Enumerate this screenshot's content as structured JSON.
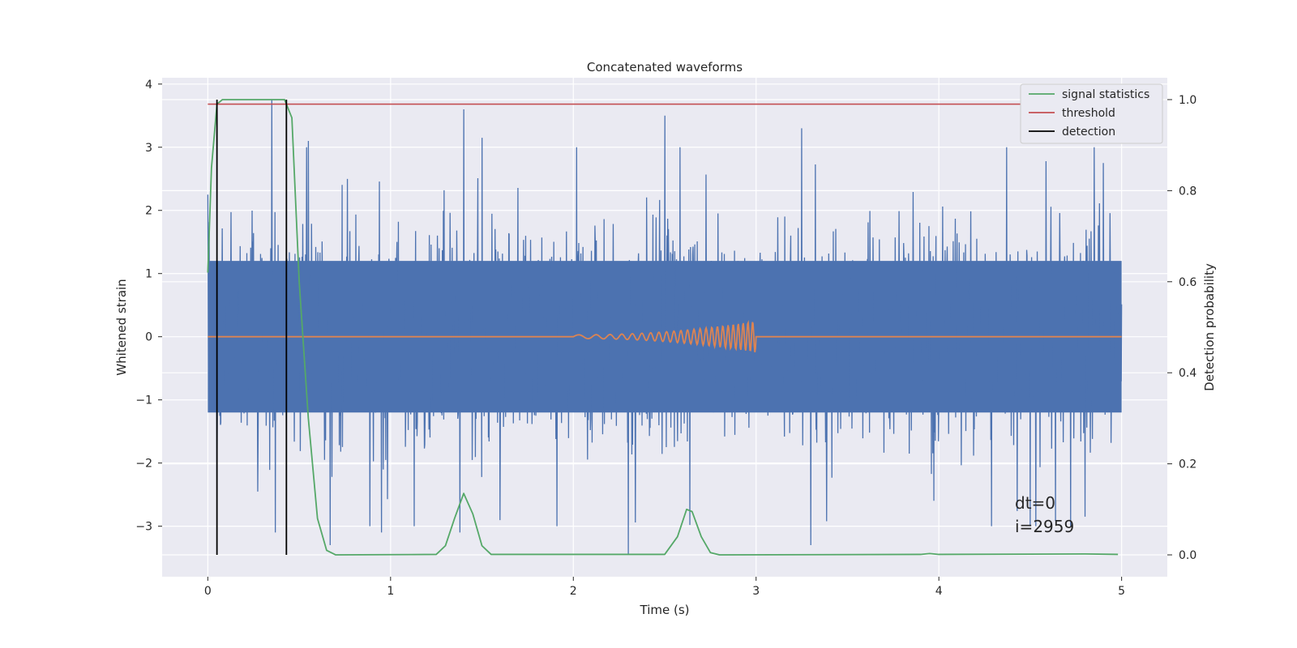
{
  "chart_data": {
    "type": "line",
    "title": "Concatenated waveforms",
    "xlabel": "Time (s)",
    "ylabel": "Whitened strain",
    "y2label": "Detection probability",
    "xlim": [
      -0.25,
      5.25
    ],
    "ylim": [
      -3.8,
      4.1
    ],
    "y2lim": [
      -0.048,
      1.048
    ],
    "x_ticks": [
      0,
      1,
      2,
      3,
      4,
      5
    ],
    "x_tick_labels": [
      "0",
      "1",
      "2",
      "3",
      "4",
      "5"
    ],
    "y_ticks": [
      -3,
      -2,
      -1,
      0,
      1,
      2,
      3,
      4
    ],
    "y_tick_labels": [
      "−3",
      "−2",
      "−1",
      "0",
      "1",
      "2",
      "3",
      "4"
    ],
    "y2_ticks": [
      0.0,
      0.2,
      0.4,
      0.6,
      0.8,
      1.0
    ],
    "y2_tick_labels": [
      "0.0",
      "0.2",
      "0.4",
      "0.6",
      "0.8",
      "1.0"
    ],
    "grid": true,
    "legend_position": "top-right",
    "colors": {
      "background": "#eaeaf2",
      "grid": "#ffffff",
      "strain": "#4c72b0",
      "template": "#dd8452",
      "signal_statistics": "#55a868",
      "threshold": "#c44e52",
      "detection": "#000000"
    },
    "series": [
      {
        "key": "strain",
        "axis": "left",
        "x_range": [
          0,
          5
        ],
        "envelope_abs": 1.2,
        "noise_std": 0.78,
        "notable_spikes": [
          {
            "x": 0.0,
            "y": 2.25
          },
          {
            "x": 0.05,
            "y": -2.4
          },
          {
            "x": 0.35,
            "y": 3.75
          },
          {
            "x": 0.37,
            "y": -3.1
          },
          {
            "x": 0.55,
            "y": 3.1
          },
          {
            "x": 0.67,
            "y": -3.3
          },
          {
            "x": 0.95,
            "y": -3.1
          },
          {
            "x": 1.4,
            "y": 3.6
          },
          {
            "x": 1.38,
            "y": -3.1
          },
          {
            "x": 1.5,
            "y": 3.15
          },
          {
            "x": 2.3,
            "y": -3.45
          },
          {
            "x": 2.5,
            "y": 3.5
          },
          {
            "x": 3.25,
            "y": 3.3
          },
          {
            "x": 3.3,
            "y": -3.3
          },
          {
            "x": 4.5,
            "y": -3.0
          },
          {
            "x": 4.8,
            "y": -2.85
          },
          {
            "x": 4.9,
            "y": 2.75
          }
        ]
      },
      {
        "key": "template",
        "axis": "left",
        "x_range": [
          0,
          5
        ],
        "chirp": {
          "start": 2.0,
          "end": 3.0,
          "start_amplitude": 0.03,
          "end_amplitude": 0.25,
          "start_freq_hz": 8,
          "end_freq_hz": 40
        }
      },
      {
        "key": "signal_statistics",
        "name": "signal statistics",
        "axis": "right",
        "points": [
          [
            0.0,
            0.62
          ],
          [
            0.02,
            0.85
          ],
          [
            0.05,
            0.99
          ],
          [
            0.08,
            1.0
          ],
          [
            0.35,
            1.0
          ],
          [
            0.42,
            1.0
          ],
          [
            0.46,
            0.96
          ],
          [
            0.5,
            0.6
          ],
          [
            0.55,
            0.3
          ],
          [
            0.6,
            0.08
          ],
          [
            0.65,
            0.01
          ],
          [
            0.7,
            0.0
          ],
          [
            1.25,
            0.001
          ],
          [
            1.3,
            0.02
          ],
          [
            1.35,
            0.08
          ],
          [
            1.4,
            0.135
          ],
          [
            1.45,
            0.09
          ],
          [
            1.5,
            0.02
          ],
          [
            1.55,
            0.001
          ],
          [
            2.5,
            0.001
          ],
          [
            2.57,
            0.04
          ],
          [
            2.62,
            0.1
          ],
          [
            2.65,
            0.095
          ],
          [
            2.7,
            0.04
          ],
          [
            2.75,
            0.005
          ],
          [
            2.8,
            0.0
          ],
          [
            3.9,
            0.001
          ],
          [
            3.95,
            0.003
          ],
          [
            4.0,
            0.001
          ],
          [
            4.8,
            0.002
          ],
          [
            4.98,
            0.001
          ]
        ]
      },
      {
        "key": "threshold",
        "name": "threshold",
        "axis": "right",
        "value": 0.99,
        "x_range": [
          0,
          5
        ]
      },
      {
        "key": "detection",
        "name": "detection",
        "axis": "right",
        "x": [
          0.05,
          0.43
        ],
        "y_range": [
          0,
          1
        ]
      }
    ],
    "legend": [
      "signal statistics",
      "threshold",
      "detection"
    ],
    "annotations": {
      "dt": "dt=0",
      "i": "i=2959"
    }
  }
}
